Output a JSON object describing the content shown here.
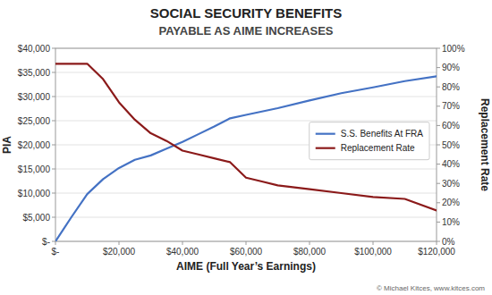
{
  "chart_data": {
    "type": "line",
    "title": "SOCIAL SECURITY BENEFITS",
    "subtitle": "PAYABLE AS AIME INCREASES",
    "annotations": [
      "© Michael Kitces, www.kitces.com"
    ],
    "xlabel": "AIME (Full Year’s Earnings)",
    "ylabel": "PIA",
    "y2label": "Replacement Rate",
    "x": [
      0,
      5000,
      10000,
      15000,
      20000,
      25000,
      30000,
      35000,
      40000,
      45000,
      50000,
      55000,
      60000,
      65000,
      70000,
      80000,
      90000,
      100000,
      110000,
      120000
    ],
    "series": [
      {
        "name": "S.S. Benefits At FRA",
        "color": "#4472c4",
        "values": [
          0,
          5000,
          9800,
          12900,
          15200,
          16900,
          17800,
          19200,
          20600,
          22200,
          23800,
          25500,
          26200,
          26900,
          27600,
          29200,
          30700,
          31900,
          33200,
          34200
        ]
      },
      {
        "name": "Replacement Rate",
        "color": "#8b1a1a",
        "axis": "y2",
        "values": [
          0.92,
          0.92,
          0.92,
          0.84,
          0.72,
          0.63,
          0.56,
          0.52,
          0.47,
          0.45,
          0.43,
          0.41,
          0.33,
          0.31,
          0.29,
          0.27,
          0.25,
          0.23,
          0.22,
          0.16
        ]
      }
    ],
    "xlim": [
      0,
      120000
    ],
    "xticks": [
      {
        "value": 0,
        "label": "$-"
      },
      {
        "value": 20000,
        "label": "$20,000"
      },
      {
        "value": 40000,
        "label": "$40,000"
      },
      {
        "value": 60000,
        "label": "$60,000"
      },
      {
        "value": 80000,
        "label": "$80,000"
      },
      {
        "value": 100000,
        "label": "$100,000"
      },
      {
        "value": 120000,
        "label": "$120,000"
      }
    ],
    "ylim": [
      0,
      40000
    ],
    "yticks": [
      {
        "value": 0,
        "label": "$-"
      },
      {
        "value": 5000,
        "label": "$5,000"
      },
      {
        "value": 10000,
        "label": "$10,000"
      },
      {
        "value": 15000,
        "label": "$15,000"
      },
      {
        "value": 20000,
        "label": "$20,000"
      },
      {
        "value": 25000,
        "label": "$25,000"
      },
      {
        "value": 30000,
        "label": "$30,000"
      },
      {
        "value": 35000,
        "label": "$35,000"
      },
      {
        "value": 40000,
        "label": "$40,000"
      }
    ],
    "y2lim": [
      0,
      1.0
    ],
    "y2ticks": [
      {
        "value": 0.0,
        "label": "0%"
      },
      {
        "value": 0.1,
        "label": "10%"
      },
      {
        "value": 0.2,
        "label": "20%"
      },
      {
        "value": 0.3,
        "label": "30%"
      },
      {
        "value": 0.4,
        "label": "40%"
      },
      {
        "value": 0.5,
        "label": "50%"
      },
      {
        "value": 0.6,
        "label": "60%"
      },
      {
        "value": 0.7,
        "label": "70%"
      },
      {
        "value": 0.8,
        "label": "80%"
      },
      {
        "value": 0.9,
        "label": "90%"
      },
      {
        "value": 1.0,
        "label": "100%"
      }
    ],
    "grid": true,
    "legend": "right"
  }
}
